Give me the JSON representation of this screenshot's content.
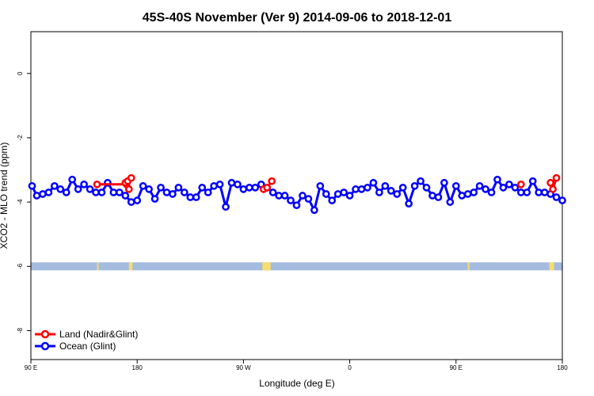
{
  "chart_data": {
    "type": "line",
    "title": "45S-40S November (Ver 9)   2014-09-06 to 2018-12-01",
    "xlabel": "Longitude (deg E)",
    "ylabel": "XCO2 - MLO trend (ppm)",
    "xlim": [
      90,
      540
    ],
    "ylim": [
      -8.9,
      1.3
    ],
    "x_ticks": [
      {
        "value": 90,
        "label": "90 E"
      },
      {
        "value": 180,
        "label": "180"
      },
      {
        "value": 270,
        "label": "90 W"
      },
      {
        "value": 360,
        "label": "0"
      },
      {
        "value": 450,
        "label": "90 E"
      },
      {
        "value": 540,
        "label": "180"
      }
    ],
    "y_ticks": [
      {
        "value": 0,
        "label": "0"
      },
      {
        "value": -2,
        "label": "-2"
      },
      {
        "value": -4,
        "label": "-4"
      },
      {
        "value": -6,
        "label": "-6"
      },
      {
        "value": -8,
        "label": "-8"
      }
    ],
    "legend_position": "bottom-left",
    "band": {
      "y": -6.0,
      "ocean_color": "#a4bbe0",
      "land_color": "#f7dc6f",
      "land_ranges": [
        [
          146,
          147
        ],
        [
          173,
          176
        ],
        [
          286,
          293
        ],
        [
          460,
          461
        ],
        [
          529,
          533
        ]
      ]
    },
    "series": [
      {
        "name": "Land (Nadir&Glint)",
        "color": "#ff0000",
        "segments": [
          {
            "x": [
              146,
              171,
              173
            ],
            "y": [
              -3.45,
              -3.45,
              -3.6
            ]
          },
          {
            "x": [
              170,
              172,
              175
            ],
            "y": [
              -3.4,
              -3.35,
              -3.25
            ]
          },
          {
            "x": [
              287,
              290,
              294
            ],
            "y": [
              -3.6,
              -3.55,
              -3.35
            ]
          },
          {
            "x": [
              505
            ],
            "y": [
              -3.45
            ]
          },
          {
            "x": [
              530,
              532,
              535
            ],
            "y": [
              -3.4,
              -3.6,
              -3.25
            ]
          }
        ]
      },
      {
        "name": "Ocean (Glint)",
        "color": "#0000ff",
        "x": [
          91,
          95,
          100,
          105,
          110,
          115,
          120,
          125,
          130,
          135,
          140,
          145,
          150,
          155,
          160,
          165,
          170,
          175,
          180,
          185,
          190,
          195,
          200,
          205,
          210,
          215,
          220,
          225,
          230,
          235,
          240,
          245,
          250,
          255,
          260,
          265,
          270,
          275,
          280,
          285,
          290,
          295,
          300,
          305,
          310,
          315,
          320,
          325,
          330,
          335,
          340,
          345,
          350,
          355,
          360,
          365,
          370,
          375,
          380,
          385,
          390,
          395,
          400,
          405,
          410,
          415,
          420,
          425,
          430,
          435,
          440,
          445,
          450,
          455,
          460,
          465,
          470,
          475,
          480,
          485,
          490,
          495,
          500,
          505,
          510,
          515,
          520,
          525,
          530,
          535,
          540
        ],
        "y": [
          -3.5,
          -3.8,
          -3.75,
          -3.7,
          -3.5,
          -3.6,
          -3.7,
          -3.3,
          -3.6,
          -3.45,
          -3.6,
          -3.7,
          -3.7,
          -3.4,
          -3.7,
          -3.7,
          -3.8,
          -4.0,
          -3.95,
          -3.5,
          -3.6,
          -3.9,
          -3.55,
          -3.7,
          -3.75,
          -3.55,
          -3.7,
          -3.85,
          -3.85,
          -3.55,
          -3.7,
          -3.5,
          -3.45,
          -4.15,
          -3.4,
          -3.45,
          -3.6,
          -3.55,
          -3.55,
          -3.45,
          -3.55,
          -3.7,
          -3.8,
          -3.8,
          -3.95,
          -4.1,
          -3.8,
          -3.9,
          -4.25,
          -3.5,
          -3.75,
          -3.95,
          -3.75,
          -3.7,
          -3.8,
          -3.6,
          -3.6,
          -3.55,
          -3.4,
          -3.7,
          -3.5,
          -3.65,
          -3.75,
          -3.55,
          -4.05,
          -3.5,
          -3.35,
          -3.55,
          -3.8,
          -3.85,
          -3.4,
          -4.0,
          -3.5,
          -3.8,
          -3.75,
          -3.7,
          -3.5,
          -3.6,
          -3.7,
          -3.3,
          -3.55,
          -3.45,
          -3.55,
          -3.7,
          -3.7,
          -3.35,
          -3.7,
          -3.7,
          -3.75,
          -3.85,
          -3.95
        ]
      }
    ]
  }
}
